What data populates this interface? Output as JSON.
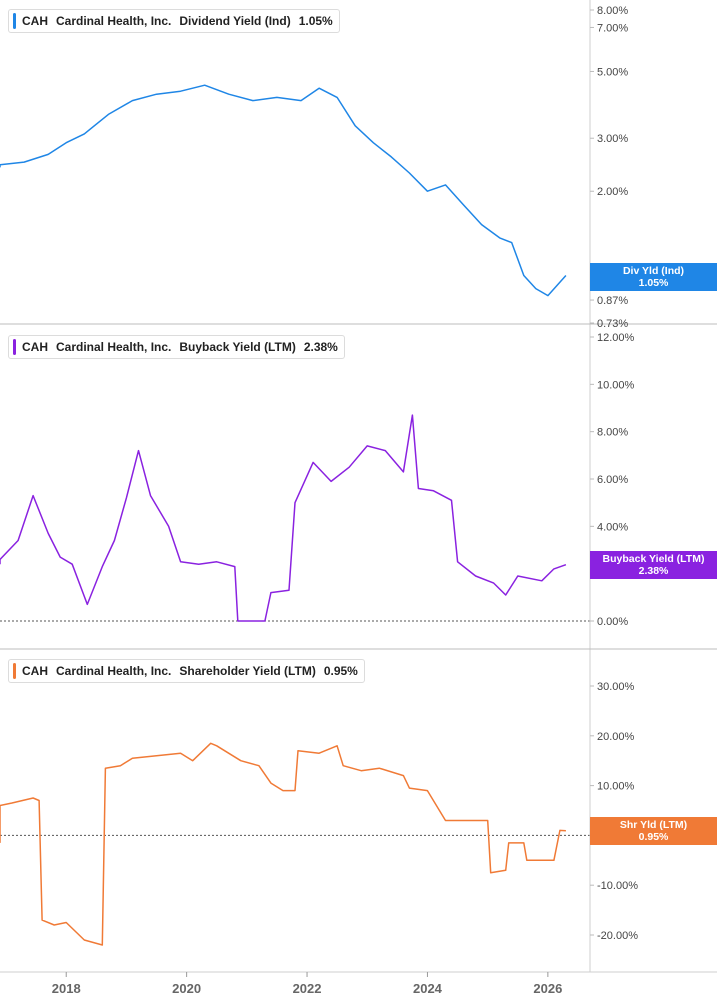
{
  "panels": [
    {
      "ticker": "CAH",
      "company": "Cardinal Health, Inc.",
      "metric": "Dividend Yield (Ind)",
      "current": "1.05%",
      "flag_label": "Div Yld (Ind)",
      "color": "#1f86e6"
    },
    {
      "ticker": "CAH",
      "company": "Cardinal Health, Inc.",
      "metric": "Buyback Yield (LTM)",
      "current": "2.38%",
      "flag_label": "Buyback Yield (LTM)",
      "color": "#8a22e0"
    },
    {
      "ticker": "CAH",
      "company": "Cardinal Health, Inc.",
      "metric": "Shareholder Yield (LTM)",
      "current": "0.95%",
      "flag_label": "Shr Yld (LTM)",
      "color": "#f07a36"
    }
  ],
  "x_axis": {
    "ticks": [
      "2018",
      "2020",
      "2022",
      "2024",
      "2026"
    ]
  },
  "chart_data": [
    {
      "type": "line",
      "scale": "log",
      "title": "CAH Cardinal Health, Inc. Dividend Yield (Ind) 1.05%",
      "y_ticks": [
        "8.00%",
        "7.00%",
        "5.00%",
        "3.00%",
        "2.00%",
        "1.00%",
        "0.87%",
        "0.73%"
      ],
      "y_tick_values": [
        8,
        7,
        5,
        3,
        2,
        1,
        0.87,
        0.73
      ],
      "series": [
        {
          "name": "Dividend Yield (Ind)",
          "x": [
            2016.5,
            2016.9,
            2017.3,
            2017.7,
            2018.0,
            2018.3,
            2018.7,
            2019.1,
            2019.5,
            2019.9,
            2020.3,
            2020.7,
            2021.1,
            2021.5,
            2021.9,
            2022.2,
            2022.5,
            2022.8,
            2023.1,
            2023.4,
            2023.7,
            2024.0,
            2024.3,
            2024.6,
            2024.9,
            2025.2,
            2025.4,
            2025.6,
            2025.8,
            2026.0,
            2026.3
          ],
          "values": [
            2.4,
            2.45,
            2.5,
            2.65,
            2.9,
            3.1,
            3.6,
            4.0,
            4.2,
            4.3,
            4.5,
            4.2,
            4.0,
            4.1,
            4.0,
            4.4,
            4.1,
            3.3,
            2.9,
            2.6,
            2.3,
            2.0,
            2.1,
            1.8,
            1.55,
            1.4,
            1.35,
            1.05,
            0.95,
            0.9,
            1.05
          ]
        }
      ]
    },
    {
      "type": "line",
      "title": "CAH Cardinal Health, Inc. Buyback Yield (LTM) 2.38%",
      "y_ticks": [
        "12.00%",
        "10.00%",
        "8.00%",
        "6.00%",
        "4.00%",
        "0.00%"
      ],
      "y_tick_values": [
        12,
        10,
        8,
        6,
        4,
        0
      ],
      "ylim": [
        0,
        12
      ],
      "series": [
        {
          "name": "Buyback Yield (LTM)",
          "x": [
            2016.5,
            2016.9,
            2017.2,
            2017.45,
            2017.7,
            2017.9,
            2018.1,
            2018.35,
            2018.6,
            2018.8,
            2019.0,
            2019.2,
            2019.4,
            2019.7,
            2019.9,
            2020.2,
            2020.5,
            2020.8,
            2020.85,
            2021.3,
            2021.4,
            2021.7,
            2021.8,
            2022.1,
            2022.4,
            2022.7,
            2023.0,
            2023.3,
            2023.6,
            2023.75,
            2023.85,
            2024.1,
            2024.4,
            2024.5,
            2024.8,
            2025.1,
            2025.3,
            2025.5,
            2025.9,
            2026.1,
            2026.3
          ],
          "values": [
            2.4,
            2.6,
            3.4,
            5.3,
            3.7,
            2.7,
            2.4,
            0.7,
            2.3,
            3.4,
            5.2,
            7.2,
            5.3,
            4.0,
            2.5,
            2.4,
            2.5,
            2.3,
            0.0,
            0.0,
            1.2,
            1.3,
            5.0,
            6.7,
            5.9,
            6.5,
            7.4,
            7.2,
            6.3,
            8.7,
            5.6,
            5.5,
            5.1,
            2.5,
            1.9,
            1.6,
            1.1,
            1.9,
            1.7,
            2.2,
            2.38
          ]
        }
      ]
    },
    {
      "type": "line",
      "title": "CAH Cardinal Health, Inc. Shareholder Yield (LTM) 0.95%",
      "y_ticks": [
        "30.00%",
        "20.00%",
        "10.00%",
        "0.00%",
        "-10.00%",
        "-20.00%"
      ],
      "y_tick_values": [
        30,
        20,
        10,
        0,
        -10,
        -20
      ],
      "ylim": [
        -23,
        32
      ],
      "series": [
        {
          "name": "Shareholder Yield (LTM)",
          "x": [
            2016.5,
            2016.75,
            2016.8,
            2017.1,
            2017.45,
            2017.55,
            2017.6,
            2017.8,
            2018.0,
            2018.3,
            2018.6,
            2018.65,
            2018.9,
            2019.1,
            2019.5,
            2019.9,
            2020.1,
            2020.4,
            2020.5,
            2020.9,
            2021.2,
            2021.4,
            2021.6,
            2021.8,
            2021.85,
            2022.2,
            2022.5,
            2022.6,
            2022.9,
            2023.2,
            2023.6,
            2023.7,
            2024.0,
            2024.3,
            2024.4,
            2025.0,
            2025.05,
            2025.3,
            2025.35,
            2025.6,
            2025.65,
            2026.1,
            2026.2,
            2026.3
          ],
          "values": [
            -1.5,
            -1.5,
            6.0,
            6.5,
            7.5,
            7.0,
            -17.0,
            -18.0,
            -17.5,
            -21.0,
            -22.0,
            13.5,
            14.0,
            15.5,
            16.0,
            16.5,
            15.0,
            18.5,
            18.0,
            15.0,
            14.0,
            10.5,
            9.0,
            9.0,
            17.0,
            16.5,
            18.0,
            14.0,
            13.0,
            13.5,
            12.0,
            9.5,
            9.0,
            3.0,
            3.0,
            3.0,
            -7.5,
            -7.0,
            -1.5,
            -1.5,
            -5.0,
            -5.0,
            1.0,
            0.95
          ]
        }
      ]
    }
  ]
}
